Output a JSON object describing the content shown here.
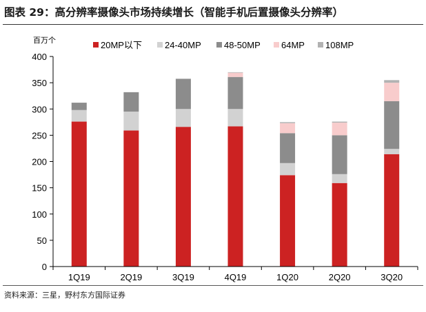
{
  "figure": {
    "title": "图表 29：高分辨率摄像头市场持续增长（智能手机后置摄像头分辨率）",
    "source": "资料来源：三星，野村东方国际证券"
  },
  "colors": {
    "20mp": "#cc2222",
    "24_40mp": "#d2d2d2",
    "48_50mp": "#8c8c8c",
    "64mp": "#f8cccc",
    "108mp": "#b2b2b2"
  },
  "chart_data": {
    "type": "bar",
    "stacked": true,
    "title": "",
    "ylabel": "百万个",
    "xlabel": "",
    "ylim": [
      0,
      400
    ],
    "yticks": [
      0,
      50,
      100,
      150,
      200,
      250,
      300,
      350,
      400
    ],
    "grid": false,
    "legend_position": "top",
    "categories": [
      "1Q19",
      "2Q19",
      "3Q19",
      "4Q19",
      "1Q20",
      "2Q20",
      "3Q20"
    ],
    "series": [
      {
        "name": "20MP以下",
        "color_key": "20mp",
        "values": [
          276,
          259,
          266,
          267,
          174,
          159,
          214
        ]
      },
      {
        "name": "24-40MP",
        "color_key": "24_40mp",
        "values": [
          22,
          36,
          34,
          33,
          23,
          17,
          10
        ]
      },
      {
        "name": "48-50MP",
        "color_key": "48_50mp",
        "values": [
          14,
          37,
          57,
          61,
          57,
          74,
          91
        ]
      },
      {
        "name": "64MP",
        "color_key": "64mp",
        "values": [
          0,
          0,
          0,
          8,
          19,
          24,
          35
        ]
      },
      {
        "name": "108MP",
        "color_key": "108mp",
        "values": [
          0,
          0,
          1,
          1,
          2,
          2,
          5
        ]
      }
    ]
  }
}
